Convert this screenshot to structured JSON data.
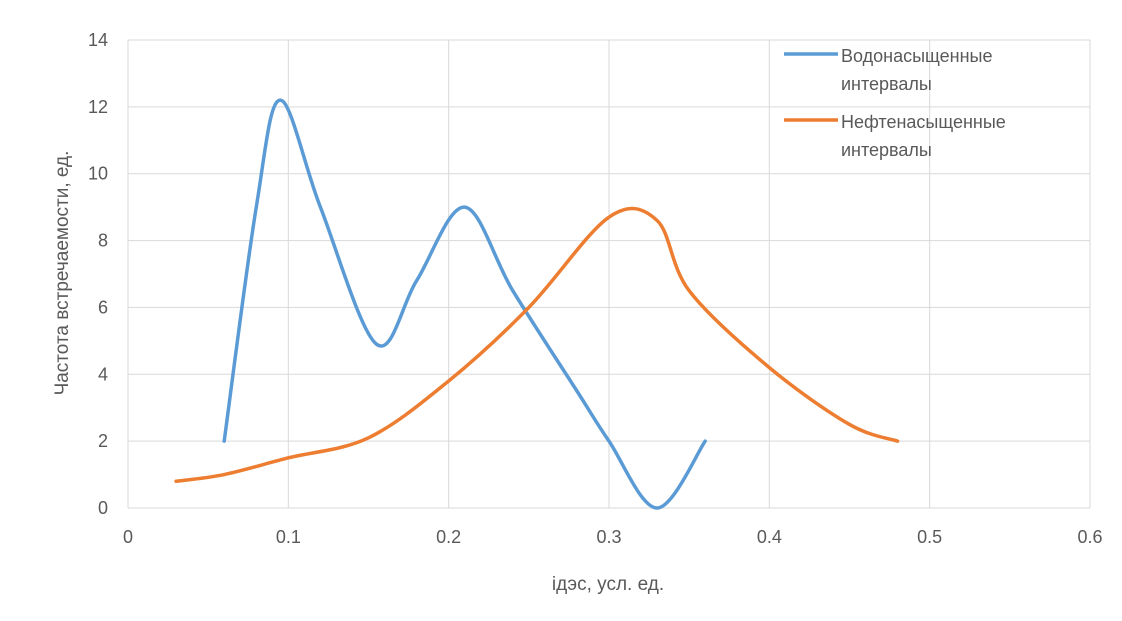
{
  "chart_data": {
    "type": "line",
    "xlabel": "iдэс, усл. ед.",
    "ylabel": "Частота встречаемости, ед.",
    "xlim": [
      0,
      0.6
    ],
    "ylim": [
      0,
      14
    ],
    "x_ticks": [
      "0",
      "0.1",
      "0.2",
      "0.3",
      "0.4",
      "0.5",
      "0.6"
    ],
    "y_ticks": [
      "0",
      "2",
      "4",
      "6",
      "8",
      "10",
      "12",
      "14"
    ],
    "grid": true,
    "legend_position": "top-right",
    "series": [
      {
        "name": "Водонасыщенные интервалы",
        "legend_lines": [
          "Водонасыщенные",
          "интервалы"
        ],
        "color": "#5B9BD5",
        "points": [
          [
            0.06,
            2
          ],
          [
            0.08,
            9
          ],
          [
            0.095,
            12.2
          ],
          [
            0.12,
            9
          ],
          [
            0.155,
            4.9
          ],
          [
            0.18,
            6.8
          ],
          [
            0.21,
            9
          ],
          [
            0.24,
            6.5
          ],
          [
            0.28,
            3.5
          ],
          [
            0.3,
            2
          ],
          [
            0.33,
            0
          ],
          [
            0.36,
            2
          ]
        ]
      },
      {
        "name": "Нефтенасыщенные интервалы",
        "legend_lines": [
          "Нефтенасыщенные",
          "интервалы"
        ],
        "color": "#ED7D31",
        "points": [
          [
            0.03,
            0.8
          ],
          [
            0.06,
            1
          ],
          [
            0.1,
            1.5
          ],
          [
            0.15,
            2.1
          ],
          [
            0.2,
            3.8
          ],
          [
            0.25,
            6
          ],
          [
            0.3,
            8.7
          ],
          [
            0.33,
            8.6
          ],
          [
            0.35,
            6.5
          ],
          [
            0.4,
            4.2
          ],
          [
            0.45,
            2.5
          ],
          [
            0.48,
            2
          ]
        ]
      }
    ]
  }
}
